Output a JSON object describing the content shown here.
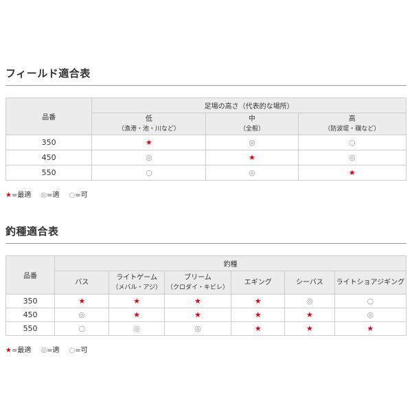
{
  "colors": {
    "title_text": "#333333",
    "body_text": "#333333",
    "star": "#e60012",
    "circle_symbol": "#999999",
    "header_bg": "#ececec",
    "table_border": "#cccccc",
    "title_rule": "#999999"
  },
  "symbols": {
    "best": "★",
    "good": "◎",
    "ok": "○"
  },
  "field_table": {
    "title": "フィールド適合表",
    "product_col_header": "品番",
    "group_header": "足場の高さ（代表的な場所）",
    "columns": [
      {
        "label": "低",
        "sub": "（漁港・池・川など）"
      },
      {
        "label": "中",
        "sub": "（全般）"
      },
      {
        "label": "高",
        "sub": "（防波堤・磯など）"
      }
    ],
    "rows": [
      {
        "product": "350",
        "values": [
          "★",
          "◎",
          "○"
        ]
      },
      {
        "product": "450",
        "values": [
          "◎",
          "★",
          "◎"
        ]
      },
      {
        "product": "550",
        "values": [
          "○",
          "◎",
          "★"
        ]
      }
    ],
    "legend": [
      {
        "symbol": "★",
        "text": "=最適"
      },
      {
        "symbol": "◎",
        "text": "=適"
      },
      {
        "symbol": "○",
        "text": "=可"
      }
    ]
  },
  "species_table": {
    "title": "釣種適合表",
    "product_col_header": "品番",
    "group_header": "釣種",
    "columns": [
      {
        "label": "バス",
        "sub": ""
      },
      {
        "label": "ライトゲーム",
        "sub": "（メバル・アジ）"
      },
      {
        "label": "ブリーム",
        "sub": "（クロダイ・キビレ）"
      },
      {
        "label": "エギング",
        "sub": ""
      },
      {
        "label": "シーバス",
        "sub": ""
      },
      {
        "label": "ライトショアジギング",
        "sub": ""
      }
    ],
    "rows": [
      {
        "product": "350",
        "values": [
          "★",
          "★",
          "★",
          "★",
          "◎",
          "○"
        ]
      },
      {
        "product": "450",
        "values": [
          "◎",
          "★",
          "★",
          "★",
          "★",
          "◎"
        ]
      },
      {
        "product": "550",
        "values": [
          "○",
          "◎",
          "◎",
          "★",
          "★",
          "★"
        ]
      }
    ],
    "legend": [
      {
        "symbol": "★",
        "text": "=最適"
      },
      {
        "symbol": "◎",
        "text": "=適"
      },
      {
        "symbol": "○",
        "text": "=可"
      }
    ]
  }
}
